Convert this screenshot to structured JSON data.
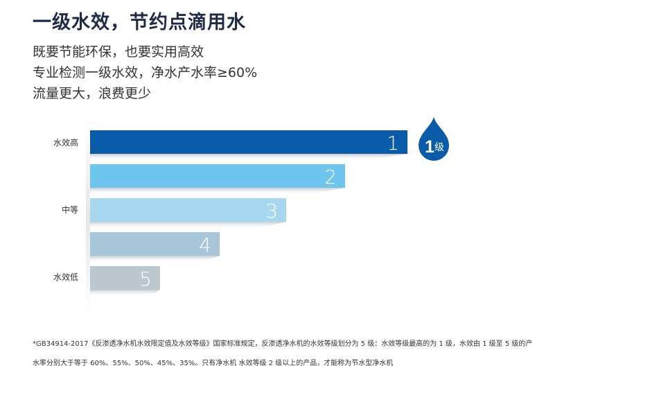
{
  "heading": "一级水效，节约点滴用水",
  "lines": [
    "既要节能环保，也要实用高效",
    "专业检测一级水效，净水产水率≥60%",
    "流量更大，浪费更少"
  ],
  "chart_data": {
    "type": "bar",
    "orientation": "horizontal",
    "categories": [
      "1",
      "2",
      "3",
      "4",
      "5"
    ],
    "values": [
      1,
      2,
      3,
      4,
      5
    ],
    "y_axis_labels": [
      "水效高",
      "中等",
      "水效低"
    ],
    "badge": {
      "number": "1",
      "text": "级"
    },
    "colors": [
      "#0a5ca8",
      "#6ec6ef",
      "#a8d8ef",
      "#a7c6d9",
      "#bcc7d0"
    ]
  },
  "footnote": [
    "*GB34914-2017《反渗透净水机水效限定值及水效等级》国家标准规定，反渗透净水机的水效等级划分为 5 级：水效等级最高的为 1 级，水效由 1 级至 5 级的产",
    "水率分别大于等于 60%、55%、50%、45%、35%。只有净水机 水效等级 2 级以上的产品，才能称为节水型净水机"
  ]
}
